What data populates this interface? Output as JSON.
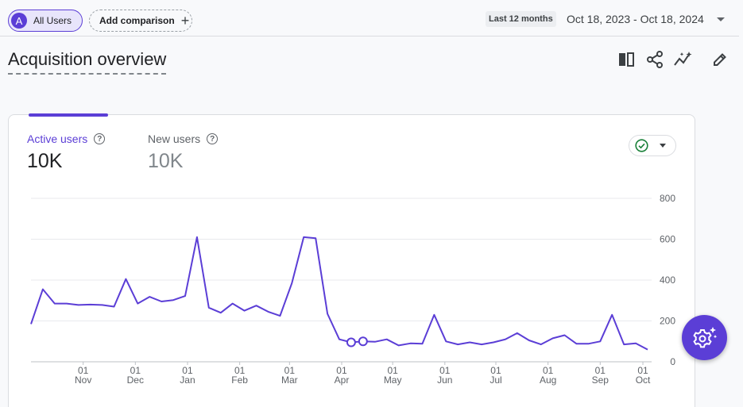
{
  "header": {
    "segment": {
      "letter": "A",
      "label": "All Users"
    },
    "add_comparison": {
      "label": "Add comparison",
      "icon": "plus-icon"
    },
    "date_range": {
      "preset": "Last 12 months",
      "range": "Oct 18, 2023 - Oct 18, 2024"
    }
  },
  "page": {
    "title": "Acquisition overview",
    "tools": [
      "compare-columns-icon",
      "share-icon",
      "insights-icon",
      "edit-pencil-icon"
    ]
  },
  "card": {
    "metrics": [
      {
        "label": "Active users",
        "value": "10K",
        "selected": true
      },
      {
        "label": "New users",
        "value": "10K",
        "selected": false
      }
    ],
    "status_icon": "check-circle-icon"
  },
  "colors": {
    "accent": "#5b3ed6",
    "status_ok": "#188038"
  },
  "chart_data": {
    "type": "line",
    "series": [
      {
        "values": [
          185,
          355,
          285,
          285,
          278,
          280,
          278,
          270,
          405,
          285,
          318,
          295,
          302,
          322,
          610,
          265,
          240,
          285,
          250,
          275,
          245,
          225,
          385,
          610,
          605,
          235,
          110,
          95,
          100,
          98,
          110,
          80,
          90,
          88,
          230,
          100,
          85,
          95,
          85,
          95,
          110,
          140,
          105,
          85,
          115,
          130,
          88,
          88,
          100,
          230,
          85,
          90,
          60
        ]
      }
    ],
    "x_tick_labels": [
      {
        "day": "01",
        "month": "Nov"
      },
      {
        "day": "01",
        "month": "Dec"
      },
      {
        "day": "01",
        "month": "Jan"
      },
      {
        "day": "01",
        "month": "Feb"
      },
      {
        "day": "01",
        "month": "Mar"
      },
      {
        "day": "01",
        "month": "Apr"
      },
      {
        "day": "01",
        "month": "May"
      },
      {
        "day": "01",
        "month": "Jun"
      },
      {
        "day": "01",
        "month": "Jul"
      },
      {
        "day": "01",
        "month": "Aug"
      },
      {
        "day": "01",
        "month": "Sep"
      },
      {
        "day": "01",
        "month": "Oct"
      }
    ],
    "x_tick_index": [
      4.4,
      8.8,
      13.2,
      17.6,
      21.8,
      26.2,
      30.5,
      34.9,
      39.2,
      43.6,
      48.0,
      51.6
    ],
    "y_ticks": [
      0,
      200,
      400,
      600,
      800
    ],
    "ylim": [
      0,
      800
    ],
    "y_axis_side": "right",
    "grid": true,
    "anomaly_points": [
      27,
      28
    ]
  }
}
